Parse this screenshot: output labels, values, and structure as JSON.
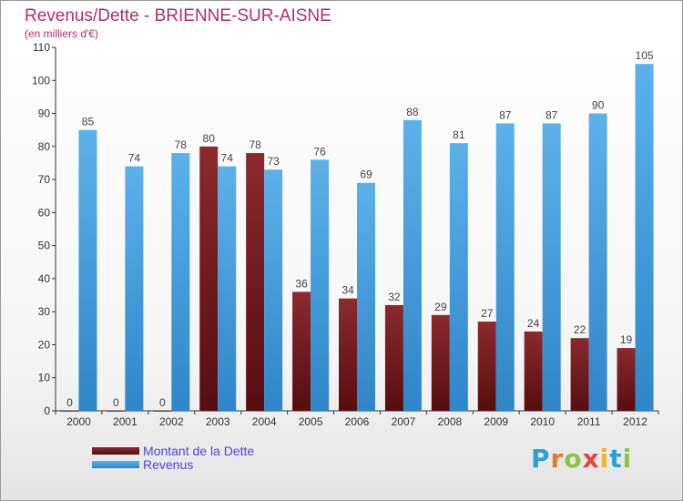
{
  "title": "Revenus/Dette - BRIENNE-SUR-AISNE",
  "subtitle": "(en milliers d'€)",
  "logo": {
    "text": "Proxiti",
    "letters": [
      {
        "ch": "P",
        "color": "#2f9fd8"
      },
      {
        "ch": "r",
        "color": "#e8792a"
      },
      {
        "ch": "o",
        "color": "#8cc63f"
      },
      {
        "ch": "x",
        "color": "#e8453c"
      },
      {
        "ch": "i",
        "color": "#f2b134"
      },
      {
        "ch": "t",
        "color": "#2f9fd8"
      },
      {
        "ch": "i",
        "color": "#8cc63f"
      }
    ]
  },
  "colors": {
    "dette": "#7a1e22",
    "revenus": "#4fa3e0",
    "title": "#b0306a",
    "legend_text": "#4a4ad8"
  },
  "chart_data": {
    "type": "bar",
    "title": "Revenus/Dette - BRIENNE-SUR-AISNE",
    "subtitle": "(en milliers d'€)",
    "categories": [
      "2000",
      "2001",
      "2002",
      "2003",
      "2004",
      "2005",
      "2006",
      "2007",
      "2008",
      "2009",
      "2010",
      "2011",
      "2012"
    ],
    "series": [
      {
        "name": "Montant de la Dette",
        "values": [
          0,
          0,
          0,
          80,
          78,
          36,
          34,
          32,
          29,
          27,
          24,
          22,
          19
        ]
      },
      {
        "name": "Revenus",
        "values": [
          85,
          74,
          78,
          74,
          73,
          76,
          69,
          88,
          81,
          87,
          87,
          90,
          105
        ]
      }
    ],
    "ylim": [
      0,
      110
    ],
    "yticks": [
      0,
      10,
      20,
      30,
      40,
      50,
      60,
      70,
      80,
      90,
      100,
      110
    ],
    "grid": false,
    "legend_position": "bottom-left"
  }
}
